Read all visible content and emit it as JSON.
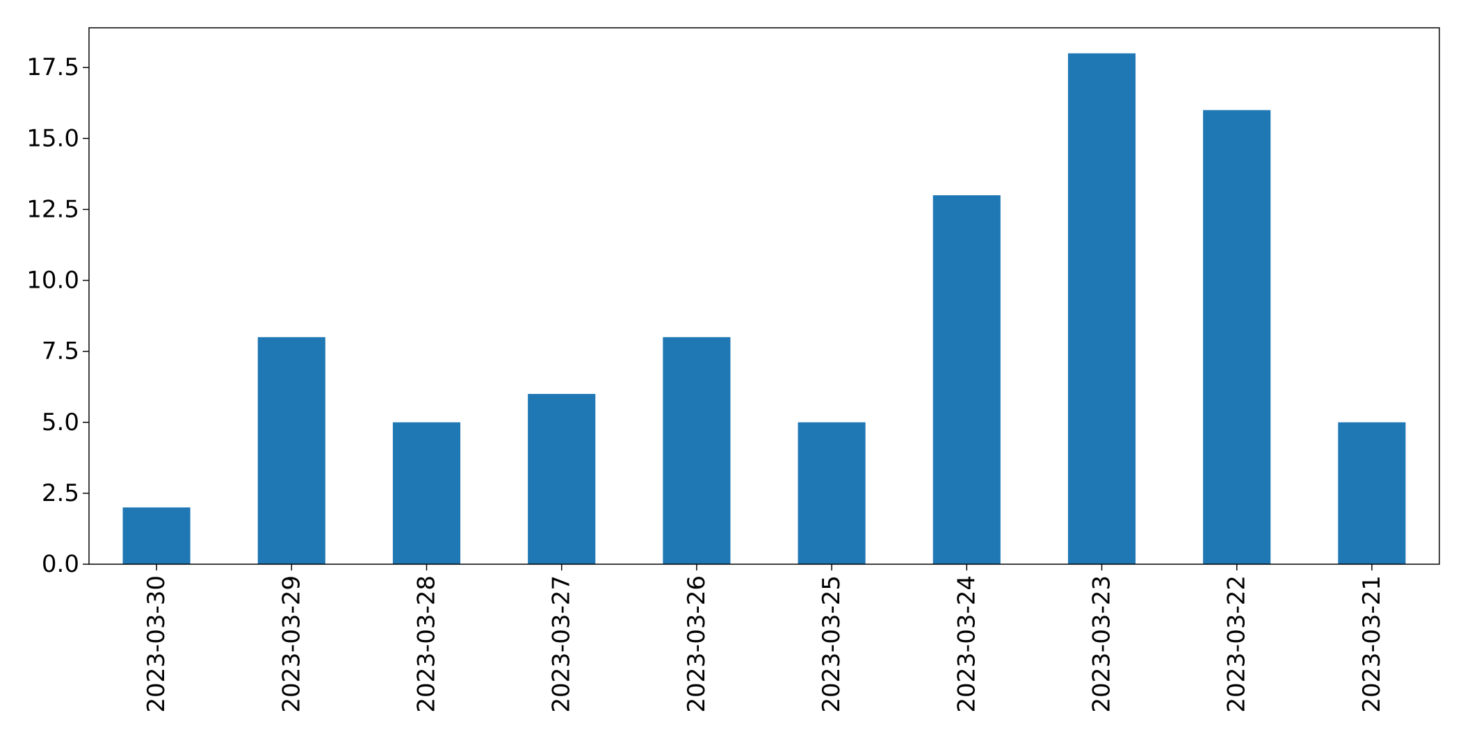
{
  "chart_data": {
    "type": "bar",
    "title": "",
    "xlabel": "",
    "ylabel": "",
    "categories": [
      "2023-03-30",
      "2023-03-29",
      "2023-03-28",
      "2023-03-27",
      "2023-03-26",
      "2023-03-25",
      "2023-03-24",
      "2023-03-23",
      "2023-03-22",
      "2023-03-21"
    ],
    "values": [
      2,
      8,
      5,
      6,
      8,
      5,
      13,
      18,
      16,
      5
    ],
    "ylim": [
      0,
      18.9
    ],
    "yticks": [
      "0.0",
      "2.5",
      "5.0",
      "7.5",
      "10.0",
      "12.5",
      "15.0",
      "17.5"
    ],
    "grid": false,
    "legend": "none",
    "bar_color": "#1f77b4"
  }
}
